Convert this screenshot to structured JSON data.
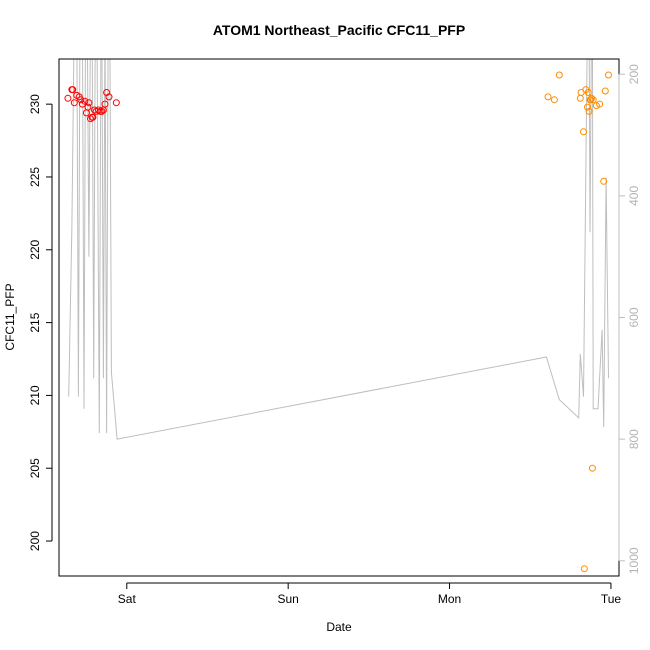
{
  "chart_data": {
    "type": "scatter",
    "title": "ATOM1 Northeast_Pacific CFC11_PFP",
    "xlabel": "Date",
    "ylabel": "CFC11_PFP",
    "x_ticks": [
      "Sat",
      "Sun",
      "Mon",
      "Tue"
    ],
    "x_tick_values": [
      1.0,
      2.0,
      3.0,
      4.0
    ],
    "xlim": [
      0.58,
      4.05
    ],
    "ylim": [
      197.6,
      233.1
    ],
    "y_ticks": [
      200,
      205,
      210,
      215,
      220,
      225,
      230
    ],
    "right_axis": {
      "ticks": [
        200,
        400,
        600,
        800,
        1000
      ],
      "lim": [
        1025,
        175
      ],
      "color": "#bebebe"
    },
    "grid": false,
    "legend": "none",
    "colors": {
      "flight1": "#ff0000",
      "flight2": "#ff8c00",
      "line": "#bebebe"
    },
    "series": [
      {
        "color": "#ff0000",
        "points": [
          [
            0.635,
            230.4
          ],
          [
            0.66,
            231.0
          ],
          [
            0.665,
            231.0
          ],
          [
            0.675,
            230.1
          ],
          [
            0.69,
            230.6
          ],
          [
            0.705,
            230.5
          ],
          [
            0.715,
            230.3
          ],
          [
            0.725,
            230.0
          ],
          [
            0.74,
            230.2
          ],
          [
            0.75,
            229.4
          ],
          [
            0.76,
            229.8
          ],
          [
            0.765,
            230.1
          ],
          [
            0.775,
            229.0
          ],
          [
            0.785,
            229.1
          ],
          [
            0.79,
            229.1
          ],
          [
            0.8,
            229.6
          ],
          [
            0.81,
            229.5
          ],
          [
            0.825,
            229.6
          ],
          [
            0.835,
            229.5
          ],
          [
            0.845,
            229.5
          ],
          [
            0.855,
            229.6
          ],
          [
            0.865,
            230.0
          ],
          [
            0.875,
            230.8
          ],
          [
            0.89,
            230.5
          ],
          [
            0.935,
            230.1
          ]
        ]
      },
      {
        "color": "#ff8c00",
        "points": [
          [
            3.61,
            230.5
          ],
          [
            3.65,
            230.3
          ],
          [
            3.68,
            232.0
          ],
          [
            3.81,
            230.4
          ],
          [
            3.815,
            230.8
          ],
          [
            3.83,
            228.1
          ],
          [
            3.835,
            198.1
          ],
          [
            3.845,
            231.0
          ],
          [
            3.855,
            229.8
          ],
          [
            3.86,
            230.8
          ],
          [
            3.865,
            229.5
          ],
          [
            3.87,
            230.3
          ],
          [
            3.875,
            230.3
          ],
          [
            3.88,
            230.4
          ],
          [
            3.885,
            205.0
          ],
          [
            3.89,
            230.3
          ],
          [
            3.91,
            229.9
          ],
          [
            3.93,
            230.0
          ],
          [
            3.955,
            224.7
          ],
          [
            3.965,
            230.9
          ],
          [
            3.985,
            232.0
          ]
        ]
      }
    ],
    "altitude_line": [
      [
        0.64,
        730
      ],
      [
        0.66,
        450
      ],
      [
        0.675,
        100
      ],
      [
        0.69,
        100
      ],
      [
        0.7,
        730
      ],
      [
        0.71,
        100
      ],
      [
        0.725,
        100
      ],
      [
        0.735,
        750
      ],
      [
        0.745,
        100
      ],
      [
        0.755,
        100
      ],
      [
        0.765,
        500
      ],
      [
        0.775,
        100
      ],
      [
        0.785,
        100
      ],
      [
        0.795,
        700
      ],
      [
        0.805,
        100
      ],
      [
        0.815,
        100
      ],
      [
        0.83,
        790
      ],
      [
        0.84,
        100
      ],
      [
        0.845,
        100
      ],
      [
        0.855,
        700
      ],
      [
        0.865,
        100
      ],
      [
        0.875,
        790
      ],
      [
        0.885,
        100
      ],
      [
        0.895,
        100
      ],
      [
        0.905,
        690
      ],
      [
        0.94,
        800
      ],
      [
        3.6,
        665
      ],
      [
        3.68,
        735
      ],
      [
        3.8,
        765
      ],
      [
        3.81,
        660
      ],
      [
        3.83,
        730
      ],
      [
        3.855,
        100
      ],
      [
        3.865,
        100
      ],
      [
        3.87,
        460
      ],
      [
        3.88,
        100
      ],
      [
        3.885,
        100
      ],
      [
        3.89,
        750
      ],
      [
        3.92,
        750
      ],
      [
        3.945,
        620
      ],
      [
        3.955,
        780
      ],
      [
        3.97,
        370
      ],
      [
        3.985,
        700
      ]
    ]
  }
}
